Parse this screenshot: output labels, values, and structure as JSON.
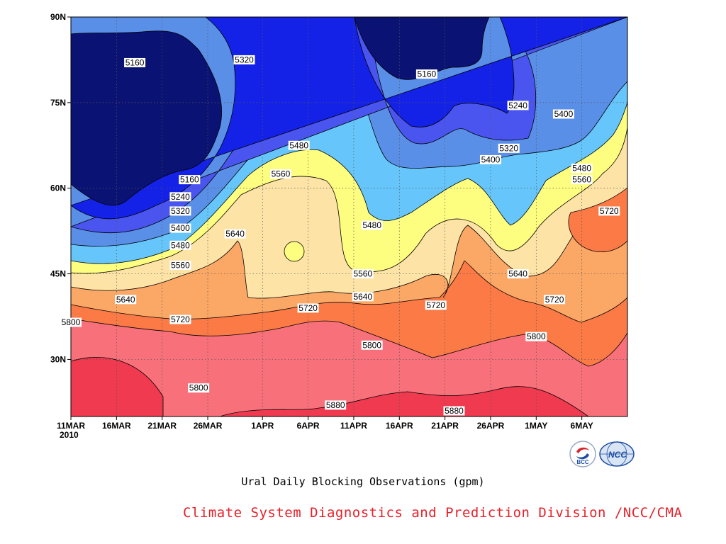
{
  "chart_data": {
    "type": "contour",
    "title": "Ural Daily Blocking Observations (gpm)",
    "variable_unit": "gpm",
    "x_ticks": [
      "11MAR",
      "16MAR",
      "21MAR",
      "26MAR",
      "1APR",
      "6APR",
      "11APR",
      "16APR",
      "21APR",
      "26APR",
      "1MAY",
      "6MAY"
    ],
    "x_year": "2010",
    "y_ticks": [
      "90N",
      "75N",
      "60N",
      "45N",
      "30N"
    ],
    "xlim": [
      "2010-03-11",
      "2010-05-11"
    ],
    "ylim": [
      20,
      90
    ],
    "contour_levels": [
      5160,
      5240,
      5320,
      5400,
      5480,
      5560,
      5640,
      5720,
      5800,
      5880
    ],
    "fill_colors": [
      "#0a1274",
      "#1422e8",
      "#4a55f0",
      "#5a8fe8",
      "#66c6fb",
      "#fdfd80",
      "#fde3a6",
      "#fba766",
      "#fb7a46",
      "#f8707a",
      "#f03a50"
    ],
    "contour_labels": [
      {
        "text": "5160",
        "date": "2010-03-18",
        "lat": 82
      },
      {
        "text": "5320",
        "date": "2010-03-30",
        "lat": 82.5
      },
      {
        "text": "5160",
        "date": "2010-04-19",
        "lat": 80
      },
      {
        "text": "5240",
        "date": "2010-04-29",
        "lat": 74.5
      },
      {
        "text": "5400",
        "date": "2010-05-04",
        "lat": 73
      },
      {
        "text": "5480",
        "date": "2010-04-05",
        "lat": 67.5
      },
      {
        "text": "5320",
        "date": "2010-04-28",
        "lat": 67
      },
      {
        "text": "5400",
        "date": "2010-04-26",
        "lat": 65
      },
      {
        "text": "5560",
        "date": "2010-04-03",
        "lat": 62.5
      },
      {
        "text": "5160",
        "date": "2010-03-24",
        "lat": 61.5
      },
      {
        "text": "5480",
        "date": "2010-05-06",
        "lat": 63.5
      },
      {
        "text": "5560",
        "date": "2010-05-06",
        "lat": 61.5
      },
      {
        "text": "5240",
        "date": "2010-03-23",
        "lat": 58.5
      },
      {
        "text": "5720",
        "date": "2010-05-09",
        "lat": 56
      },
      {
        "text": "5320",
        "date": "2010-03-23",
        "lat": 56
      },
      {
        "text": "5400",
        "date": "2010-03-23",
        "lat": 53
      },
      {
        "text": "5480",
        "date": "2010-04-13",
        "lat": 53.5
      },
      {
        "text": "5640",
        "date": "2010-03-29",
        "lat": 52
      },
      {
        "text": "5480",
        "date": "2010-03-23",
        "lat": 50
      },
      {
        "text": "5560",
        "date": "2010-03-23",
        "lat": 46.5
      },
      {
        "text": "5560",
        "date": "2010-04-12",
        "lat": 45
      },
      {
        "text": "5640",
        "date": "2010-04-29",
        "lat": 45
      },
      {
        "text": "5640",
        "date": "2010-03-17",
        "lat": 40.5
      },
      {
        "text": "5640",
        "date": "2010-04-12",
        "lat": 41
      },
      {
        "text": "5720",
        "date": "2010-04-20",
        "lat": 39.5
      },
      {
        "text": "5720",
        "date": "2010-05-03",
        "lat": 40.5
      },
      {
        "text": "5720",
        "date": "2010-04-06",
        "lat": 39
      },
      {
        "text": "5720",
        "date": "2010-03-23",
        "lat": 37
      },
      {
        "text": "5800",
        "date": "2010-03-11",
        "lat": 36.5
      },
      {
        "text": "5800",
        "date": "2010-04-13",
        "lat": 32.5
      },
      {
        "text": "5800",
        "date": "2010-05-01",
        "lat": 34
      },
      {
        "text": "5800",
        "date": "2010-03-25",
        "lat": 25
      },
      {
        "text": "5880",
        "date": "2010-04-09",
        "lat": 22
      },
      {
        "text": "5880",
        "date": "2010-04-22",
        "lat": 21
      }
    ]
  },
  "caption": "Ural Daily Blocking Observations (gpm)",
  "credit": "Climate System Diagnostics and Prediction Division /NCC/CMA",
  "logos": {
    "left": "BCC",
    "right": "NCC"
  }
}
